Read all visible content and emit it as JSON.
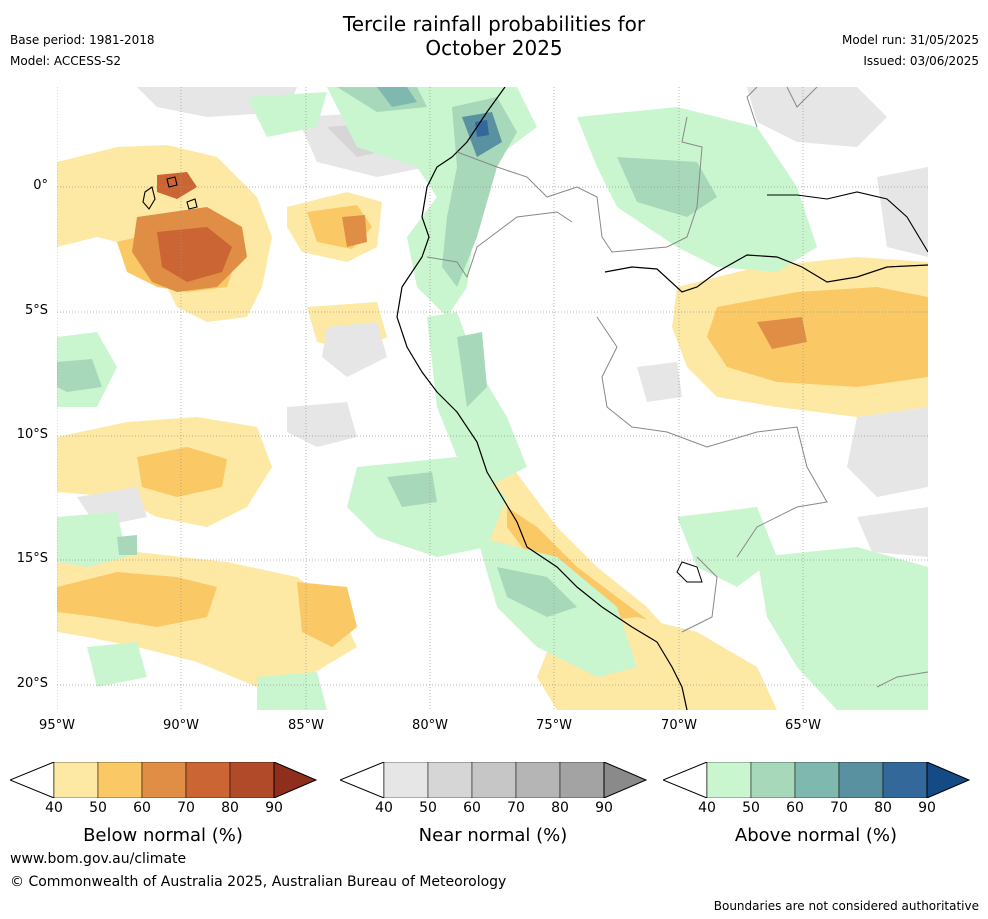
{
  "title_line1": "Tercile rainfall probabilities for",
  "title_line2": "October 2025",
  "meta_left": {
    "base_period": "Base period: 1981-2018",
    "model": "Model: ACCESS-S2"
  },
  "meta_right": {
    "model_run": "Model run: 31/05/2025",
    "issued": "Issued: 03/06/2025"
  },
  "lat_labels": [
    "0°",
    "5°S",
    "10°S",
    "15°S",
    "20°S"
  ],
  "lon_labels": [
    "95°W",
    "90°W",
    "85°W",
    "80°W",
    "75°W",
    "70°W",
    "65°W"
  ],
  "legends": [
    {
      "title": "Below normal (%)",
      "ticks": [
        "40",
        "50",
        "60",
        "70",
        "80",
        "90"
      ],
      "colors": [
        "#fde9a4",
        "#fbc866",
        "#e08e45",
        "#cb6533",
        "#b04a28",
        "#8f2e1c"
      ]
    },
    {
      "title": "Near normal (%)",
      "ticks": [
        "40",
        "50",
        "60",
        "70",
        "80",
        "90"
      ],
      "colors": [
        "#e6e6e6",
        "#d6d6d6",
        "#c6c6c6",
        "#b5b5b5",
        "#a3a3a3",
        "#8a8a8a"
      ]
    },
    {
      "title": "Above normal (%)",
      "ticks": [
        "40",
        "50",
        "60",
        "70",
        "80",
        "90"
      ],
      "colors": [
        "#c9f6cf",
        "#a7d8ba",
        "#7eb8ae",
        "#5a91a0",
        "#33689a",
        "#154b85"
      ]
    }
  ],
  "footer": {
    "url": "www.bom.gov.au/climate",
    "copyright": "© Commonwealth of Australia 2025, Australian Bureau of Meteorology",
    "note": "Boundaries are not considered authoritative"
  }
}
